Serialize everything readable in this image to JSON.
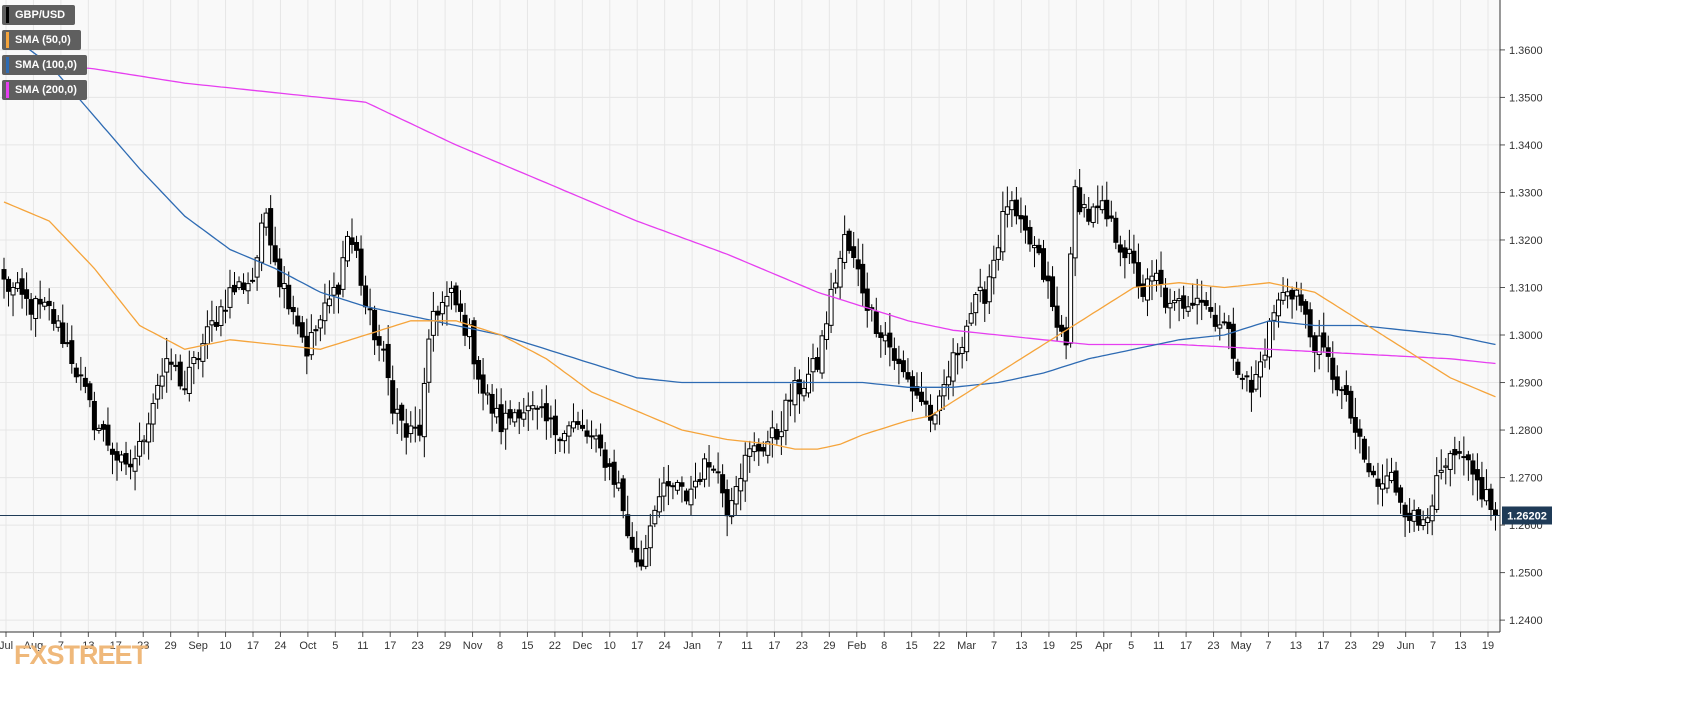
{
  "colors": {
    "price_line": "#1f3b57",
    "sma50": "#f5a43b",
    "sma100": "#2e6bb3",
    "sma200": "#e63ef0",
    "price_label_bg": "#1f3b57",
    "brand": "#efb87a"
  },
  "legend": [
    {
      "label": "GBP/USD",
      "color": "#000000"
    },
    {
      "label": "SMA (50,0)",
      "color": "#f5a43b"
    },
    {
      "label": "SMA (100,0)",
      "color": "#2e6bb3"
    },
    {
      "label": "SMA (200,0)",
      "color": "#e63ef0"
    }
  ],
  "brand": "FXSTREET",
  "chart_data": {
    "type": "candlestick",
    "title": "GBP/USD",
    "ylim": [
      1.2375,
      1.3705
    ],
    "grid": true,
    "y_ticks": [
      "1.2400",
      "1.2500",
      "1.2600",
      "1.2700",
      "1.2800",
      "1.2900",
      "1.3000",
      "1.3100",
      "1.3200",
      "1.3300",
      "1.3400",
      "1.3500",
      "1.3600"
    ],
    "x_ticks": [
      "Jul",
      "Aug",
      "7",
      "13",
      "17",
      "23",
      "29",
      "Sep",
      "10",
      "17",
      "24",
      "Oct",
      "5",
      "11",
      "17",
      "23",
      "29",
      "Nov",
      "8",
      "15",
      "22",
      "Dec",
      "10",
      "17",
      "24",
      "Jan",
      "7",
      "11",
      "17",
      "23",
      "29",
      "Feb",
      "8",
      "15",
      "22",
      "Mar",
      "7",
      "13",
      "19",
      "25",
      "Apr",
      "5",
      "11",
      "17",
      "23",
      "May",
      "7",
      "13",
      "17",
      "23",
      "29",
      "Jun",
      "7",
      "13",
      "19"
    ],
    "last_price": "1.26202",
    "close_anchors": [
      [
        0,
        1.311
      ],
      [
        6,
        1.306
      ],
      [
        10,
        1.305
      ],
      [
        14,
        1.298
      ],
      [
        17,
        1.29
      ],
      [
        20,
        1.282
      ],
      [
        24,
        1.276
      ],
      [
        27,
        1.271
      ],
      [
        30,
        1.276
      ],
      [
        34,
        1.29
      ],
      [
        37,
        1.294
      ],
      [
        40,
        1.289
      ],
      [
        43,
        1.296
      ],
      [
        46,
        1.302
      ],
      [
        50,
        1.309
      ],
      [
        55,
        1.312
      ],
      [
        58,
        1.326
      ],
      [
        61,
        1.312
      ],
      [
        64,
        1.306
      ],
      [
        67,
        1.297
      ],
      [
        70,
        1.303
      ],
      [
        74,
        1.311
      ],
      [
        76,
        1.321
      ],
      [
        78,
        1.317
      ],
      [
        80,
        1.306
      ],
      [
        84,
        1.295
      ],
      [
        86,
        1.286
      ],
      [
        89,
        1.279
      ],
      [
        92,
        1.28
      ],
      [
        95,
        1.305
      ],
      [
        99,
        1.308
      ],
      [
        103,
        1.3
      ],
      [
        106,
        1.288
      ],
      [
        110,
        1.281
      ],
      [
        114,
        1.285
      ],
      [
        118,
        1.283
      ],
      [
        122,
        1.28
      ],
      [
        126,
        1.281
      ],
      [
        130,
        1.278
      ],
      [
        133,
        1.274
      ],
      [
        136,
        1.268
      ],
      [
        139,
        1.254
      ],
      [
        141,
        1.252
      ],
      [
        144,
        1.265
      ],
      [
        148,
        1.268
      ],
      [
        151,
        1.266
      ],
      [
        154,
        1.271
      ],
      [
        157,
        1.274
      ],
      [
        160,
        1.264
      ],
      [
        162,
        1.27
      ],
      [
        165,
        1.275
      ],
      [
        168,
        1.277
      ],
      [
        171,
        1.279
      ],
      [
        174,
        1.287
      ],
      [
        177,
        1.29
      ],
      [
        180,
        1.294
      ],
      [
        183,
        1.308
      ],
      [
        186,
        1.32
      ],
      [
        189,
        1.313
      ],
      [
        192,
        1.304
      ],
      [
        195,
        1.3
      ],
      [
        198,
        1.293
      ],
      [
        201,
        1.289
      ],
      [
        204,
        1.285
      ],
      [
        206,
        1.281
      ],
      [
        208,
        1.289
      ],
      [
        211,
        1.297
      ],
      [
        214,
        1.305
      ],
      [
        217,
        1.309
      ],
      [
        220,
        1.32
      ],
      [
        222,
        1.328
      ],
      [
        225,
        1.322
      ],
      [
        228,
        1.318
      ],
      [
        231,
        1.31
      ],
      [
        233,
        1.301
      ],
      [
        235,
        1.3
      ],
      [
        237,
        1.33
      ],
      [
        240,
        1.325
      ],
      [
        243,
        1.326
      ],
      [
        246,
        1.321
      ],
      [
        249,
        1.316
      ],
      [
        252,
        1.309
      ],
      [
        255,
        1.312
      ],
      [
        258,
        1.305
      ],
      [
        261,
        1.307
      ],
      [
        264,
        1.309
      ],
      [
        267,
        1.305
      ],
      [
        270,
        1.302
      ],
      [
        273,
        1.294
      ],
      [
        276,
        1.288
      ],
      [
        278,
        1.294
      ],
      [
        281,
        1.305
      ],
      [
        284,
        1.31
      ],
      [
        286,
        1.309
      ],
      [
        289,
        1.3
      ],
      [
        292,
        1.296
      ],
      [
        295,
        1.29
      ],
      [
        298,
        1.283
      ],
      [
        301,
        1.273
      ],
      [
        304,
        1.268
      ],
      [
        307,
        1.27
      ],
      [
        310,
        1.264
      ],
      [
        313,
        1.26
      ],
      [
        316,
        1.266
      ],
      [
        319,
        1.272
      ],
      [
        322,
        1.274
      ],
      [
        325,
        1.27
      ],
      [
        328,
        1.266
      ],
      [
        330,
        1.262
      ]
    ],
    "sma50_anchors": [
      [
        0,
        1.328
      ],
      [
        10,
        1.324
      ],
      [
        20,
        1.314
      ],
      [
        30,
        1.302
      ],
      [
        40,
        1.297
      ],
      [
        50,
        1.299
      ],
      [
        60,
        1.298
      ],
      [
        70,
        1.297
      ],
      [
        80,
        1.3
      ],
      [
        90,
        1.303
      ],
      [
        100,
        1.303
      ],
      [
        110,
        1.3
      ],
      [
        120,
        1.295
      ],
      [
        130,
        1.288
      ],
      [
        140,
        1.284
      ],
      [
        150,
        1.28
      ],
      [
        160,
        1.278
      ],
      [
        170,
        1.277
      ],
      [
        175,
        1.276
      ],
      [
        180,
        1.276
      ],
      [
        185,
        1.277
      ],
      [
        190,
        1.279
      ],
      [
        200,
        1.282
      ],
      [
        205,
        1.283
      ],
      [
        210,
        1.286
      ],
      [
        220,
        1.292
      ],
      [
        230,
        1.298
      ],
      [
        240,
        1.304
      ],
      [
        250,
        1.31
      ],
      [
        260,
        1.311
      ],
      [
        270,
        1.31
      ],
      [
        280,
        1.311
      ],
      [
        290,
        1.309
      ],
      [
        300,
        1.303
      ],
      [
        310,
        1.297
      ],
      [
        320,
        1.291
      ],
      [
        330,
        1.287
      ]
    ],
    "sma100_anchors": [
      [
        0,
        1.364
      ],
      [
        10,
        1.357
      ],
      [
        20,
        1.346
      ],
      [
        30,
        1.335
      ],
      [
        40,
        1.325
      ],
      [
        50,
        1.318
      ],
      [
        60,
        1.314
      ],
      [
        70,
        1.309
      ],
      [
        80,
        1.306
      ],
      [
        90,
        1.304
      ],
      [
        100,
        1.302
      ],
      [
        110,
        1.3
      ],
      [
        120,
        1.297
      ],
      [
        130,
        1.294
      ],
      [
        140,
        1.291
      ],
      [
        150,
        1.29
      ],
      [
        160,
        1.29
      ],
      [
        170,
        1.29
      ],
      [
        180,
        1.29
      ],
      [
        190,
        1.29
      ],
      [
        200,
        1.289
      ],
      [
        210,
        1.289
      ],
      [
        220,
        1.29
      ],
      [
        230,
        1.292
      ],
      [
        240,
        1.295
      ],
      [
        250,
        1.297
      ],
      [
        260,
        1.299
      ],
      [
        270,
        1.3
      ],
      [
        280,
        1.303
      ],
      [
        290,
        1.302
      ],
      [
        300,
        1.302
      ],
      [
        310,
        1.301
      ],
      [
        320,
        1.3
      ],
      [
        330,
        1.298
      ]
    ],
    "sma200_anchors": [
      [
        0,
        1.358
      ],
      [
        20,
        1.356
      ],
      [
        40,
        1.353
      ],
      [
        60,
        1.351
      ],
      [
        80,
        1.349
      ],
      [
        100,
        1.34
      ],
      [
        120,
        1.332
      ],
      [
        140,
        1.324
      ],
      [
        160,
        1.317
      ],
      [
        180,
        1.309
      ],
      [
        190,
        1.306
      ],
      [
        200,
        1.303
      ],
      [
        210,
        1.301
      ],
      [
        220,
        1.3
      ],
      [
        230,
        1.299
      ],
      [
        240,
        1.298
      ],
      [
        260,
        1.298
      ],
      [
        280,
        1.297
      ],
      [
        300,
        1.296
      ],
      [
        320,
        1.295
      ],
      [
        330,
        1.294
      ]
    ]
  }
}
